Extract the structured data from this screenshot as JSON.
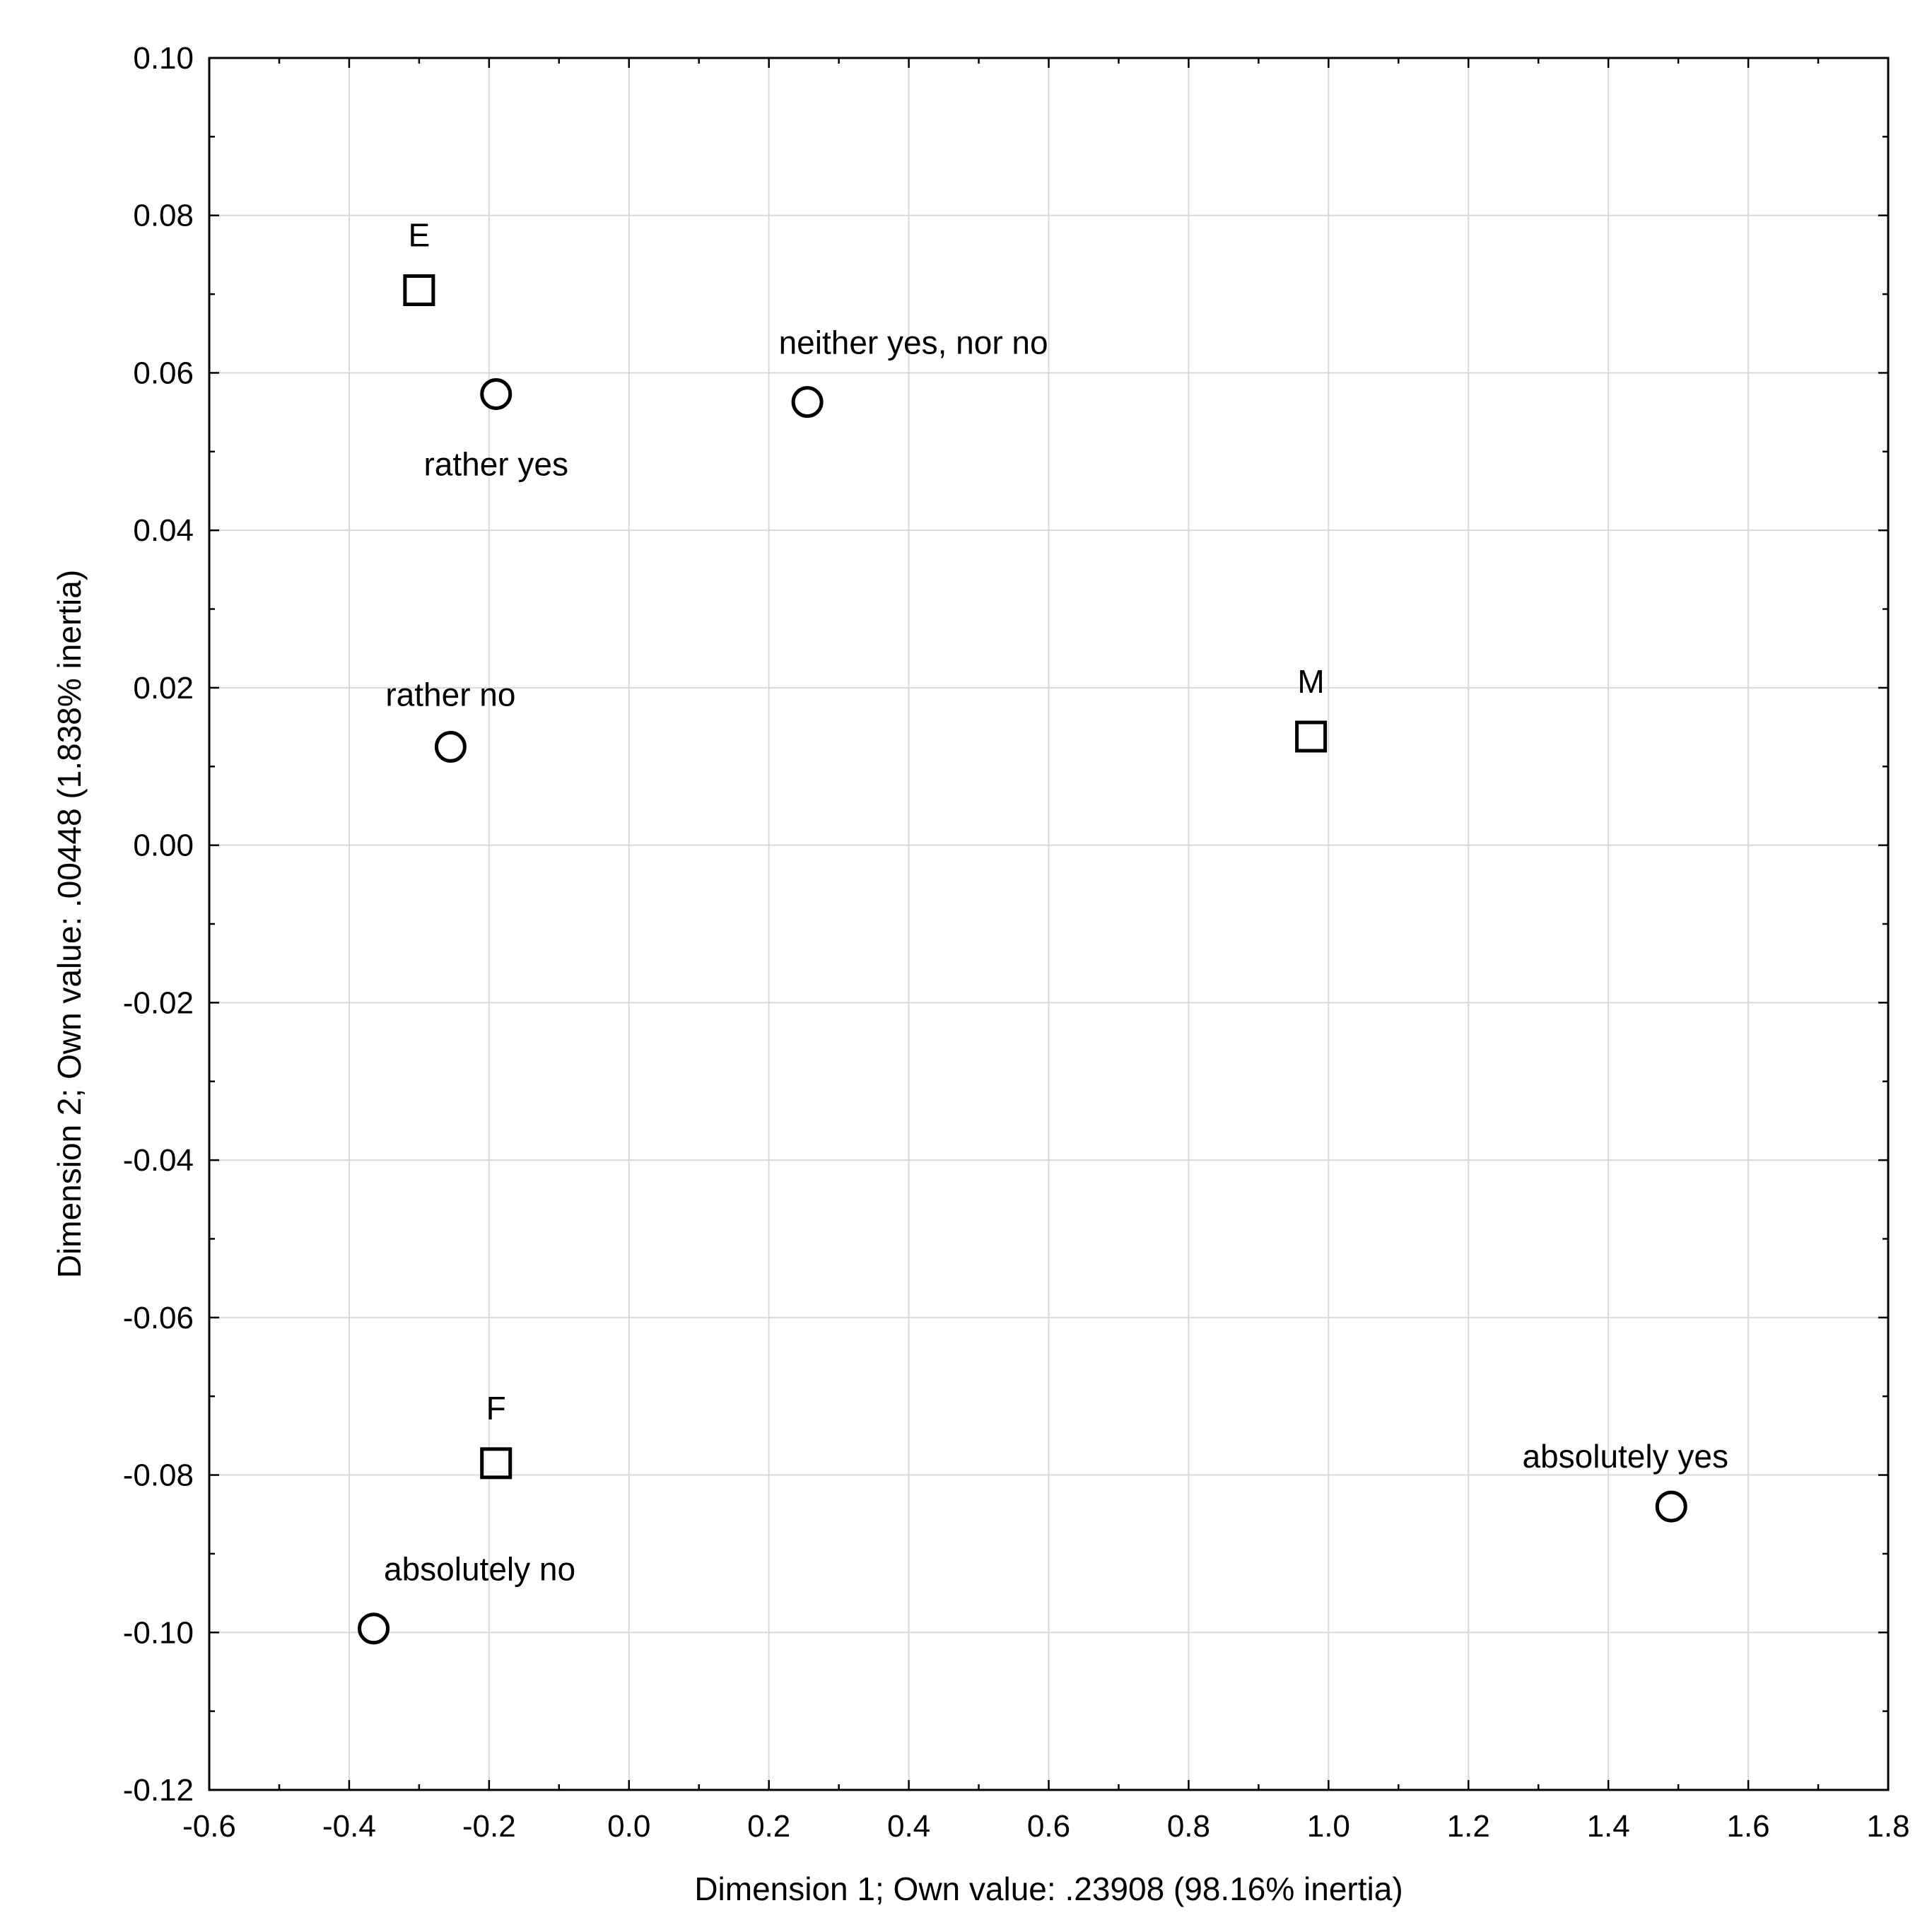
{
  "chart_data": {
    "type": "scatter",
    "xlabel": "Dimension 1; Own value:  .23908 (98.16% inertia)",
    "ylabel": "Dimension 2; Own value:  .00448 (1.838% inertia)",
    "xlim": [
      -0.6,
      1.8
    ],
    "ylim": [
      -0.12,
      0.1
    ],
    "xticks": [
      "-0.6",
      "-0.4",
      "-0.2",
      "0.0",
      "0.2",
      "0.4",
      "0.6",
      "0.8",
      "1.0",
      "1.2",
      "1.4",
      "1.6",
      "1.8"
    ],
    "yticks": [
      "0.10",
      "0.08",
      "0.06",
      "0.04",
      "0.02",
      "0.00",
      "-0.02",
      "-0.04",
      "-0.06",
      "-0.08",
      "-0.10",
      "-0.12"
    ],
    "grid": true,
    "legend": "none",
    "series": [
      {
        "marker": "square",
        "points": [
          {
            "label": "E",
            "x": -0.3,
            "y": 0.0705,
            "label_pos": "above"
          },
          {
            "label": "M",
            "x": 0.975,
            "y": 0.0138,
            "label_pos": "above"
          },
          {
            "label": "F",
            "x": -0.19,
            "y": -0.0785,
            "label_pos": "above"
          }
        ]
      },
      {
        "marker": "circle",
        "points": [
          {
            "label": "rather yes",
            "x": -0.19,
            "y": 0.0573,
            "label_pos": "below"
          },
          {
            "label": "neither yes, nor no",
            "x": 0.255,
            "y": 0.0563,
            "label_pos": "above-right"
          },
          {
            "label": "rather no",
            "x": -0.255,
            "y": 0.0125,
            "label_pos": "above"
          },
          {
            "label": "absolutely yes",
            "x": 1.49,
            "y": -0.084,
            "label_pos": "above-left"
          },
          {
            "label": "absolutely no",
            "x": -0.365,
            "y": -0.0995,
            "label_pos": "above-right"
          }
        ]
      }
    ]
  }
}
